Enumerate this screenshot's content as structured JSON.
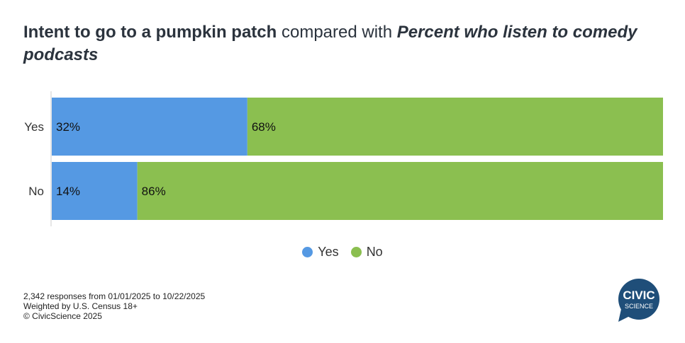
{
  "title": {
    "bold": "Intent to go to a pumpkin patch",
    "mid": " compared with ",
    "italic": "Percent who listen to comedy podcasts"
  },
  "chart_data": {
    "type": "bar",
    "orientation": "horizontal",
    "stacked": true,
    "categories": [
      "Yes",
      "No"
    ],
    "series": [
      {
        "name": "Yes",
        "color": "#5599E3",
        "values": [
          32,
          14
        ]
      },
      {
        "name": "No",
        "color": "#8BBF50",
        "values": [
          68,
          86
        ]
      }
    ],
    "xlim": [
      0,
      100
    ],
    "legend": "bottom",
    "grid": false
  },
  "legend": [
    "Yes",
    "No"
  ],
  "footer": [
    "2,342 responses from 01/01/2025 to 10/22/2025",
    "Weighted by U.S. Census 18+",
    "© CivicScience 2025"
  ],
  "logo": {
    "line1": "CIVIC",
    "line2": "SCIENCE",
    "color": "#1F4E79"
  }
}
